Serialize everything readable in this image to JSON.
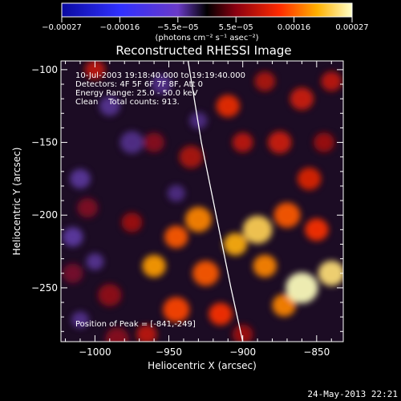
{
  "footer": {
    "date": "24-May-2013 22:21"
  },
  "colorbar": {
    "tick_labels": [
      "-0.00027",
      "-0.00016",
      "-5.5e-05",
      "5.5e-05",
      "0.00016",
      "0.00027"
    ],
    "unit_label": "(photons cm⁻² s⁻¹ asec⁻²)",
    "range": [
      -0.00027,
      0.00027
    ]
  },
  "chart_data": {
    "type": "heatmap",
    "title": "Reconstructed RHESSI Image",
    "xlabel": "Heliocentric X (arcsec)",
    "ylabel": "Heliocentric Y (arcsec)",
    "xlim": [
      -1023,
      -832
    ],
    "ylim": [
      -287,
      -94
    ],
    "x_ticks": [
      -1000,
      -950,
      -900,
      -850
    ],
    "y_ticks": [
      -250,
      -200,
      -150,
      -100
    ],
    "annotations": [
      "10-Jul-2003 19:18:40.000 to 19:19:40.000",
      "Detectors: 4F 5F 6F 7F 8F, Att 0",
      "Energy Range: 25.0 - 50.0 keV",
      "Clean    Total counts: 913."
    ],
    "peak_label": "Position of Peak = [-841,-249]",
    "peak": {
      "x": -841,
      "y": -249
    },
    "limb_arc": [
      {
        "x": -937,
        "y": -94
      },
      {
        "x": -928,
        "y": -150
      },
      {
        "x": -918,
        "y": -200
      },
      {
        "x": -908,
        "y": -250
      },
      {
        "x": -900,
        "y": -287
      }
    ],
    "blobs": [
      {
        "x": -860,
        "y": -250,
        "v": 0.00027,
        "r": 11
      },
      {
        "x": -840,
        "y": -240,
        "v": 0.00025,
        "r": 9
      },
      {
        "x": -872,
        "y": -262,
        "v": 0.0002,
        "r": 8
      },
      {
        "x": -890,
        "y": -210,
        "v": 0.00024,
        "r": 10
      },
      {
        "x": -905,
        "y": -220,
        "v": 0.00022,
        "r": 8
      },
      {
        "x": -930,
        "y": -203,
        "v": 0.0002,
        "r": 9
      },
      {
        "x": -945,
        "y": -215,
        "v": 0.00018,
        "r": 8
      },
      {
        "x": -960,
        "y": -235,
        "v": 0.00021,
        "r": 8
      },
      {
        "x": -925,
        "y": -240,
        "v": 0.00018,
        "r": 9
      },
      {
        "x": -945,
        "y": -265,
        "v": 0.00017,
        "r": 9
      },
      {
        "x": -915,
        "y": -268,
        "v": 0.00016,
        "r": 8
      },
      {
        "x": -885,
        "y": -235,
        "v": 0.0002,
        "r": 8
      },
      {
        "x": -870,
        "y": -200,
        "v": 0.00018,
        "r": 9
      },
      {
        "x": -850,
        "y": -210,
        "v": 0.00016,
        "r": 8
      },
      {
        "x": -855,
        "y": -175,
        "v": 0.00014,
        "r": 8
      },
      {
        "x": -875,
        "y": -150,
        "v": 0.00013,
        "r": 8
      },
      {
        "x": -900,
        "y": -150,
        "v": 0.00012,
        "r": 7
      },
      {
        "x": -910,
        "y": -125,
        "v": 0.00015,
        "r": 8
      },
      {
        "x": -885,
        "y": -108,
        "v": 0.00011,
        "r": 7
      },
      {
        "x": -860,
        "y": -120,
        "v": 0.00013,
        "r": 8
      },
      {
        "x": -840,
        "y": -108,
        "v": 0.00012,
        "r": 7
      },
      {
        "x": -845,
        "y": -150,
        "v": 0.0001,
        "r": 7
      },
      {
        "x": -935,
        "y": -160,
        "v": 0.00011,
        "r": 8
      },
      {
        "x": -960,
        "y": -150,
        "v": 8e-05,
        "r": 7
      },
      {
        "x": -1000,
        "y": -100,
        "v": 0.00012,
        "r": 7
      },
      {
        "x": -975,
        "y": -205,
        "v": 0.0001,
        "r": 7
      },
      {
        "x": -1005,
        "y": -195,
        "v": 7e-05,
        "r": 7
      },
      {
        "x": -990,
        "y": -255,
        "v": 9e-05,
        "r": 8
      },
      {
        "x": -985,
        "y": -285,
        "v": 8e-05,
        "r": 8
      },
      {
        "x": -1015,
        "y": -240,
        "v": 6e-05,
        "r": 7
      },
      {
        "x": -900,
        "y": -282,
        "v": 0.0001,
        "r": 7
      },
      {
        "x": -965,
        "y": -282,
        "v": 0.00012,
        "r": 7
      },
      {
        "x": -975,
        "y": -150,
        "v": -6e-05,
        "r": 8
      },
      {
        "x": -1010,
        "y": -175,
        "v": -8e-05,
        "r": 7
      },
      {
        "x": -990,
        "y": -125,
        "v": -7e-05,
        "r": 7
      },
      {
        "x": -1015,
        "y": -215,
        "v": -9e-05,
        "r": 7
      },
      {
        "x": -955,
        "y": -110,
        "v": -6e-05,
        "r": 7
      },
      {
        "x": -1000,
        "y": -232,
        "v": -7e-05,
        "r": 6
      },
      {
        "x": -945,
        "y": -185,
        "v": -5e-05,
        "r": 6
      },
      {
        "x": -1010,
        "y": -272,
        "v": -6e-05,
        "r": 6
      },
      {
        "x": -930,
        "y": -135,
        "v": -5e-05,
        "r": 6
      }
    ]
  }
}
